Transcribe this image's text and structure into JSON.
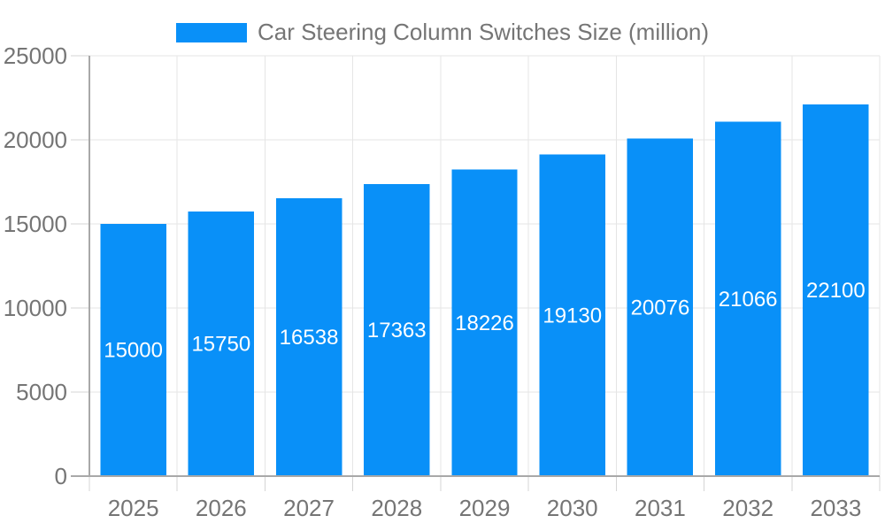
{
  "legend": {
    "label": "Car Steering Column Switches Size (million)"
  },
  "colors": {
    "bar": "#0990f8",
    "bar_label": "#ffffff",
    "grid": "#e5e5e5",
    "axis": "#a8a8a8",
    "tick": "#d5d5d5",
    "text": "#757575",
    "background": "#ffffff"
  },
  "chart_data": {
    "type": "bar",
    "title": "Car Steering Column Switches Size (million)",
    "categories": [
      "2025",
      "2026",
      "2027",
      "2028",
      "2029",
      "2030",
      "2031",
      "2032",
      "2033"
    ],
    "values": [
      15000,
      15750,
      16538,
      17363,
      18226,
      19130,
      20076,
      21066,
      22100
    ],
    "xlabel": "",
    "ylabel": "",
    "ylim": [
      0,
      25000
    ],
    "yticks": [
      0,
      5000,
      10000,
      15000,
      20000,
      25000
    ],
    "grid": true,
    "legend_position": "top",
    "bar_value_labels": "inside-middle"
  }
}
